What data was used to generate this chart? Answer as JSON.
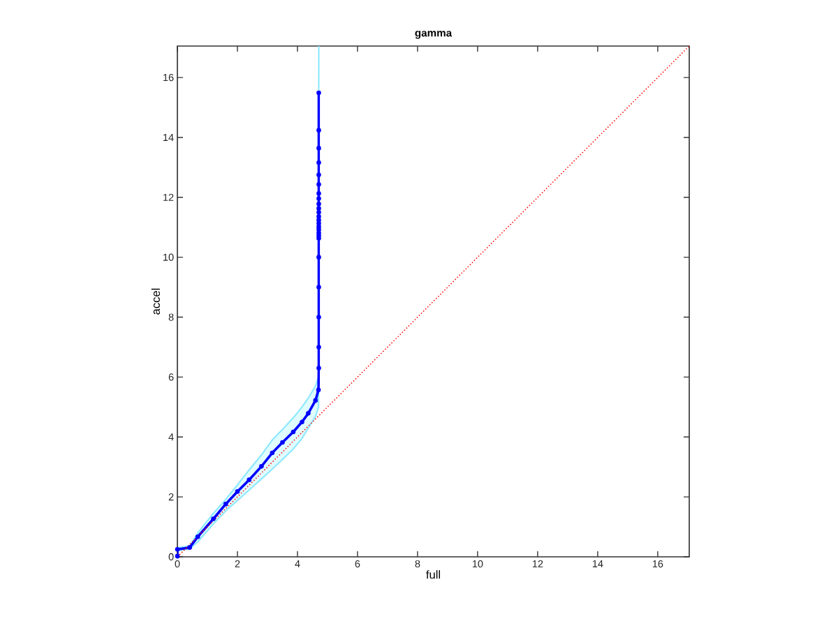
{
  "chart_data": {
    "type": "line",
    "title": "gamma",
    "xlabel": "full",
    "ylabel": "accel",
    "xlim": [
      0,
      17.05
    ],
    "ylim": [
      0,
      17.05
    ],
    "xticks": [
      0,
      2,
      4,
      6,
      8,
      10,
      12,
      14,
      16
    ],
    "yticks": [
      0,
      2,
      4,
      6,
      8,
      10,
      12,
      14,
      16
    ],
    "series": [
      {
        "color": "#0000ff",
        "marker": "circle",
        "line_style": "solid",
        "x": [
          0,
          0,
          0.41,
          0.68,
          1.2,
          1.61,
          2.0,
          2.39,
          2.8,
          3.16,
          3.5,
          3.86,
          4.15,
          4.36,
          4.6,
          4.7,
          4.71,
          4.71,
          4.71,
          4.71,
          4.71,
          4.71,
          4.71,
          4.71,
          4.71,
          4.71,
          4.71,
          4.71,
          4.71,
          4.71,
          4.71,
          4.71,
          4.71,
          4.71,
          4.71,
          4.71,
          4.71,
          4.71,
          4.71,
          4.71
        ],
        "values": [
          0.02,
          0.25,
          0.31,
          0.67,
          1.27,
          1.76,
          2.18,
          2.57,
          3.02,
          3.47,
          3.82,
          4.17,
          4.5,
          4.79,
          5.22,
          5.57,
          6.3,
          7,
          8,
          9,
          10,
          10.63,
          10.72,
          10.81,
          10.92,
          11.02,
          11.13,
          11.24,
          11.36,
          11.5,
          11.63,
          11.78,
          11.96,
          12.13,
          12.43,
          12.75,
          13.16,
          13.64,
          14.24,
          15.49
        ],
        "lower": [
          0,
          0.2,
          0.27,
          0.5,
          1.1,
          1.53,
          1.88,
          2.23,
          2.6,
          2.93,
          3.25,
          3.6,
          3.95,
          4.3,
          4.69,
          5.0,
          6.3,
          6.3,
          6.3,
          6.3,
          6.3,
          6.3,
          6.3,
          6.3,
          6.3,
          6.3,
          6.3,
          6.3,
          6.3,
          6.3,
          6.3,
          6.3,
          6.3,
          6.3,
          6.3,
          6.3,
          6.3,
          6.3,
          6.3,
          6.3
        ],
        "upper": [
          0.05,
          0.3,
          0.36,
          0.8,
          1.45,
          1.92,
          2.4,
          2.9,
          3.4,
          3.9,
          4.25,
          4.64,
          5.0,
          5.3,
          5.7,
          6.0,
          17.05,
          17.05,
          17.05,
          17.05,
          17.05,
          17.05,
          17.05,
          17.05,
          17.05,
          17.05,
          17.05,
          17.05,
          17.05,
          17.05,
          17.05,
          17.05,
          17.05,
          17.05,
          17.05,
          17.05,
          17.05,
          17.05,
          17.05,
          17.05
        ]
      },
      {
        "color": "#ff0000",
        "marker": "none",
        "line_style": "dotted",
        "x": [
          0,
          17.05
        ],
        "values": [
          0,
          17.05
        ]
      }
    ]
  }
}
